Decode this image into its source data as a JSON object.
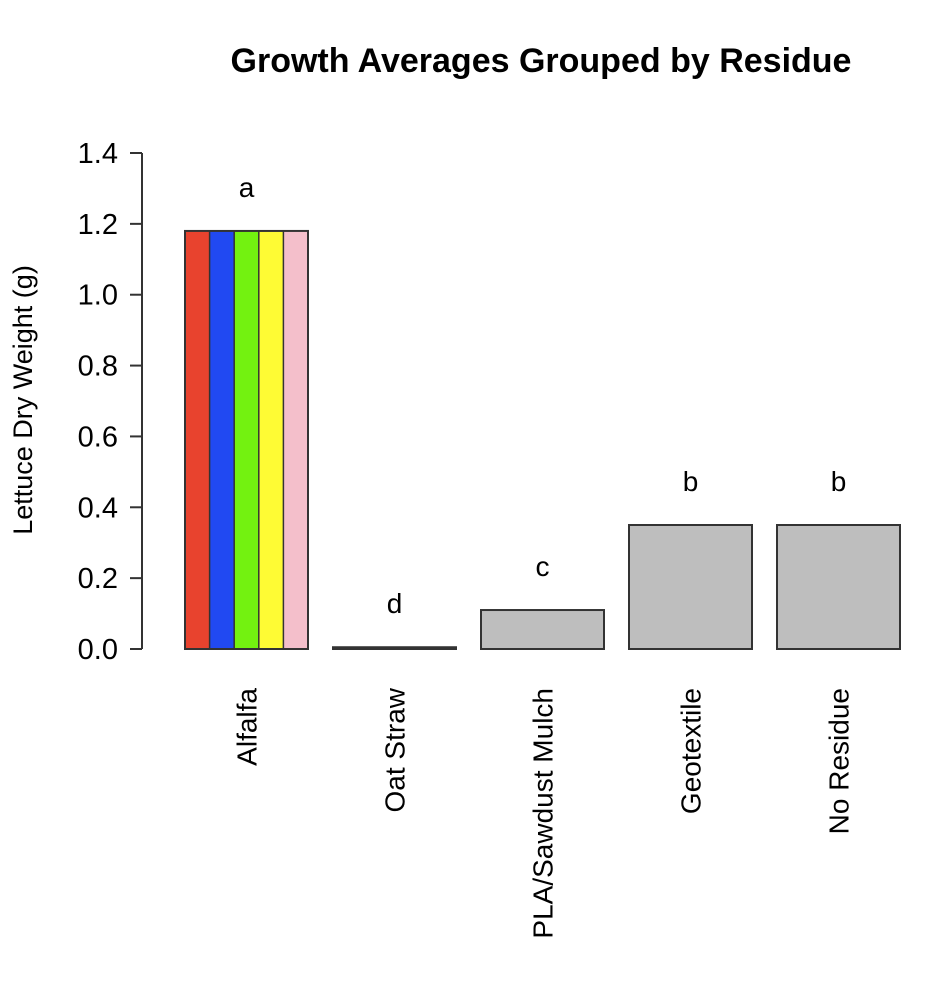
{
  "chart_data": {
    "type": "bar",
    "title": "Growth Averages Grouped by Residue",
    "xlabel": "",
    "ylabel": "Lettuce Dry Weight (g)",
    "ylim": [
      0,
      1.4
    ],
    "yticks": [
      "0.0",
      "0.2",
      "0.4",
      "0.6",
      "0.8",
      "1.0",
      "1.2",
      "1.4"
    ],
    "categories": [
      "Alfalfa",
      "Oat Straw",
      "PLA/Sawdust Mulch",
      "Geotextile",
      "No Residue"
    ],
    "values": [
      1.18,
      0.005,
      0.11,
      0.35,
      0.35
    ],
    "significance_letters": [
      "a",
      "d",
      "c",
      "b",
      "b"
    ],
    "bar_color": "#bebebe",
    "highlight_stripe_colors": [
      "#e8432e",
      "#2149f2",
      "#73f210",
      "#fefb34",
      "#f4bfcb"
    ],
    "grid": false,
    "legend": "none"
  }
}
